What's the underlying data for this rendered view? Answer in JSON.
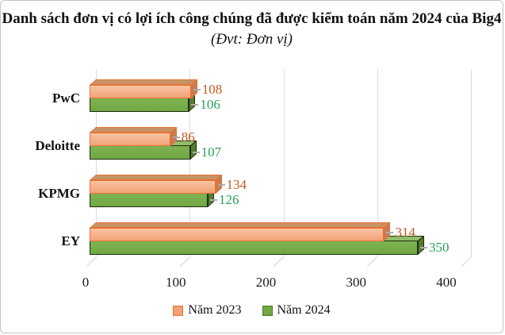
{
  "title": {
    "main": "Danh sách đơn vị có lợi ích công chúng đã được kiểm toán năm 2024 của Big4",
    "unit": "(Đvt: Đơn vị)"
  },
  "chart_data": {
    "type": "bar",
    "orientation": "horizontal",
    "effect": "3d",
    "categories": [
      "PwC",
      "Deloitte",
      "KPMG",
      "EY"
    ],
    "series": [
      {
        "name": "Năm 2023",
        "values": [
          108,
          86,
          134,
          314
        ],
        "color": "#F2A276",
        "color_light": "#F9C4A4",
        "top_color": "#C79366",
        "side_color": "#C87C52",
        "border": "#E97132",
        "label_color": "#C45A1E"
      },
      {
        "name": "Năm 2024",
        "values": [
          106,
          107,
          126,
          350
        ],
        "color": "#70A845",
        "color_light": "#7DB24F",
        "top_color": "#8FBF6B",
        "side_color": "#547C2F",
        "border": "#1F2D0C",
        "label_color": "#27A05E"
      }
    ],
    "x_ticks": [
      0,
      100,
      200,
      300,
      400
    ],
    "xlim": [
      0,
      425
    ],
    "grid": true,
    "legend_position": "bottom"
  }
}
